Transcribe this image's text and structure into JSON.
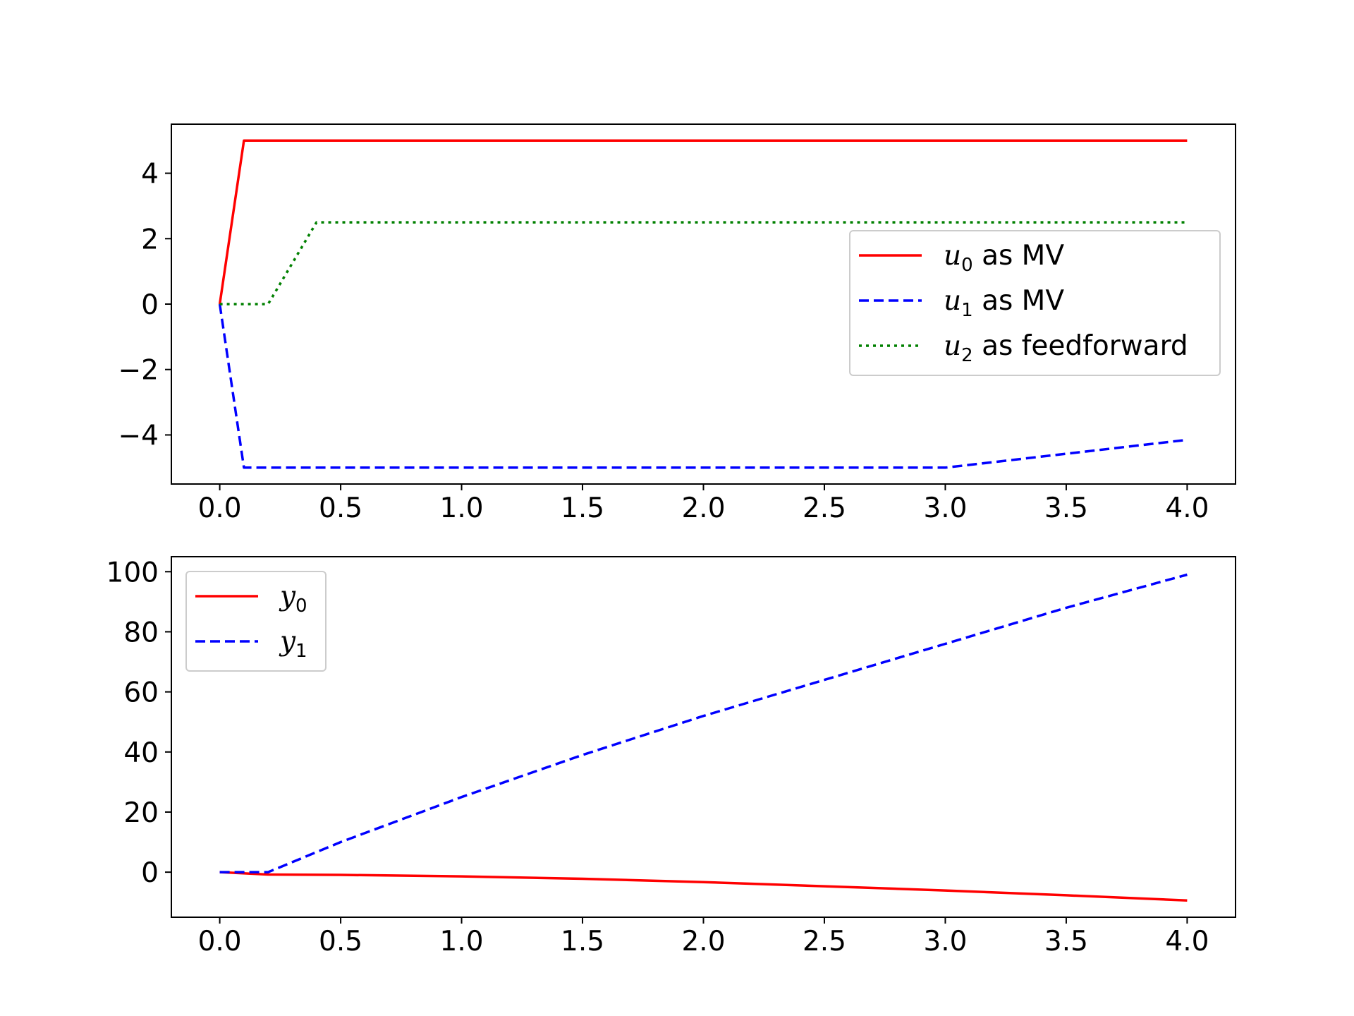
{
  "chart_data": [
    {
      "type": "line",
      "title": "",
      "xlabel": "",
      "ylabel": "",
      "xlim": [
        -0.2,
        4.2
      ],
      "ylim": [
        -5.5,
        5.5
      ],
      "xticks": [
        0.0,
        0.5,
        1.0,
        1.5,
        2.0,
        2.5,
        3.0,
        3.5,
        4.0
      ],
      "xtick_labels": [
        "0.0",
        "0.5",
        "1.0",
        "1.5",
        "2.0",
        "2.5",
        "3.0",
        "3.5",
        "4.0"
      ],
      "yticks": [
        4,
        2,
        0,
        -2,
        -4
      ],
      "ytick_labels": [
        "4",
        "2",
        "0",
        "−2",
        "−4"
      ],
      "grid": false,
      "legend_position": "center-right",
      "series": [
        {
          "name": "u0 as MV",
          "legend": {
            "symbol": "u",
            "sub": "0",
            "text": " as MV"
          },
          "color": "#ff0000",
          "style": "solid",
          "x": [
            0.0,
            0.1,
            4.0
          ],
          "y": [
            0.0,
            5.0,
            5.0
          ]
        },
        {
          "name": "u1 as MV",
          "legend": {
            "symbol": "u",
            "sub": "1",
            "text": " as MV"
          },
          "color": "#0000ff",
          "style": "dashed",
          "x": [
            0.0,
            0.1,
            3.0,
            4.0
          ],
          "y": [
            0.0,
            -5.0,
            -5.0,
            -4.15
          ]
        },
        {
          "name": "u2 as feedforward",
          "legend": {
            "symbol": "u",
            "sub": "2",
            "text": " as feedforward"
          },
          "color": "#008000",
          "style": "dotted",
          "x": [
            0.0,
            0.2,
            0.4,
            4.0
          ],
          "y": [
            0.0,
            0.0,
            2.5,
            2.5
          ]
        }
      ]
    },
    {
      "type": "line",
      "title": "",
      "xlabel": "",
      "ylabel": "",
      "xlim": [
        -0.2,
        4.2
      ],
      "ylim": [
        -15,
        105
      ],
      "xticks": [
        0.0,
        0.5,
        1.0,
        1.5,
        2.0,
        2.5,
        3.0,
        3.5,
        4.0
      ],
      "xtick_labels": [
        "0.0",
        "0.5",
        "1.0",
        "1.5",
        "2.0",
        "2.5",
        "3.0",
        "3.5",
        "4.0"
      ],
      "yticks": [
        100,
        80,
        60,
        40,
        20,
        0
      ],
      "ytick_labels": [
        "100",
        "80",
        "60",
        "40",
        "20",
        "0"
      ],
      "grid": false,
      "legend_position": "top-left",
      "series": [
        {
          "name": "y0",
          "legend": {
            "symbol": "y",
            "sub": "0",
            "text": ""
          },
          "color": "#ff0000",
          "style": "solid",
          "x": [
            0.0,
            0.2,
            0.5,
            1.0,
            1.5,
            2.0,
            2.5,
            3.0,
            3.5,
            4.0
          ],
          "y": [
            0.0,
            -0.8,
            -0.9,
            -1.4,
            -2.2,
            -3.3,
            -4.7,
            -6.1,
            -7.7,
            -9.4
          ]
        },
        {
          "name": "y1",
          "legend": {
            "symbol": "y",
            "sub": "1",
            "text": ""
          },
          "color": "#0000ff",
          "style": "dashed",
          "x": [
            0.0,
            0.2,
            0.5,
            1.0,
            1.5,
            2.0,
            2.5,
            3.0,
            3.5,
            4.0
          ],
          "y": [
            0.0,
            0.0,
            10.0,
            25.0,
            39.0,
            52.0,
            64.0,
            76.0,
            88.0,
            99.0
          ]
        }
      ]
    }
  ]
}
